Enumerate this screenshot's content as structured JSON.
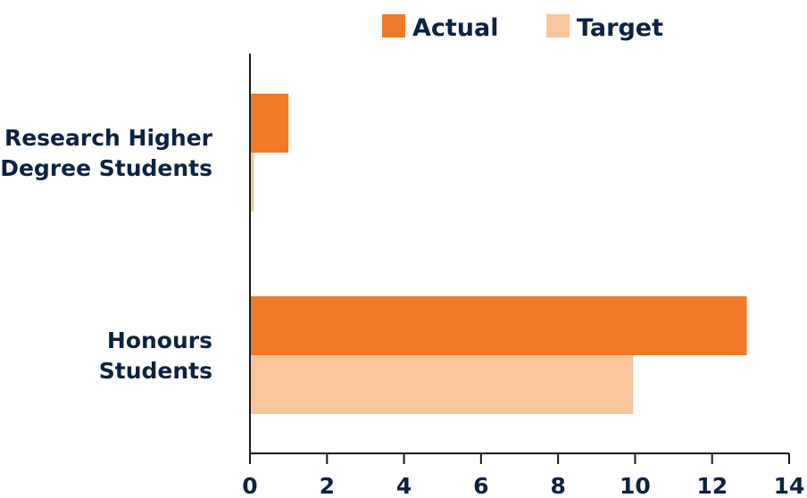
{
  "chart_data": {
    "type": "bar",
    "orientation": "horizontal",
    "categories": [
      [
        "Research Higher",
        "Degree Students"
      ],
      [
        "Honours",
        "Students"
      ]
    ],
    "series": [
      {
        "name": "Actual",
        "values": [
          1,
          12.9
        ],
        "color": "#ee7a28"
      },
      {
        "name": "Target",
        "values": [
          0.1,
          9.95
        ],
        "color": "#f9c59b"
      }
    ],
    "xlim": [
      0,
      14
    ],
    "xticks": [
      0,
      2,
      4,
      6,
      8,
      10,
      12,
      14
    ],
    "title": "",
    "xlabel": "",
    "ylabel": "",
    "grid": false,
    "legend_position": "top"
  }
}
